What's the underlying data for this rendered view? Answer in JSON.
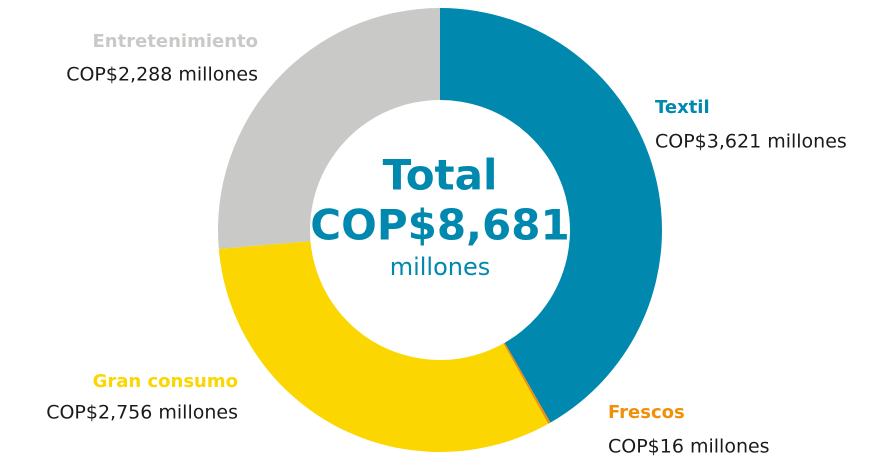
{
  "chart_data": {
    "type": "donut",
    "categories": [
      "Textil",
      "Frescos",
      "Gran consumo",
      "Entretenimiento"
    ],
    "values": [
      3621,
      16,
      2756,
      2288
    ],
    "value_labels": [
      "COP$3,621 millones",
      "COP$16 millones",
      "COP$2,756 millones",
      "COP$2,288 millones"
    ],
    "colors": [
      "#0088ae",
      "#f0900a",
      "#fcd600",
      "#c9c9c7"
    ],
    "center_text": [
      "Total",
      "COP$8,681",
      "millones"
    ]
  }
}
